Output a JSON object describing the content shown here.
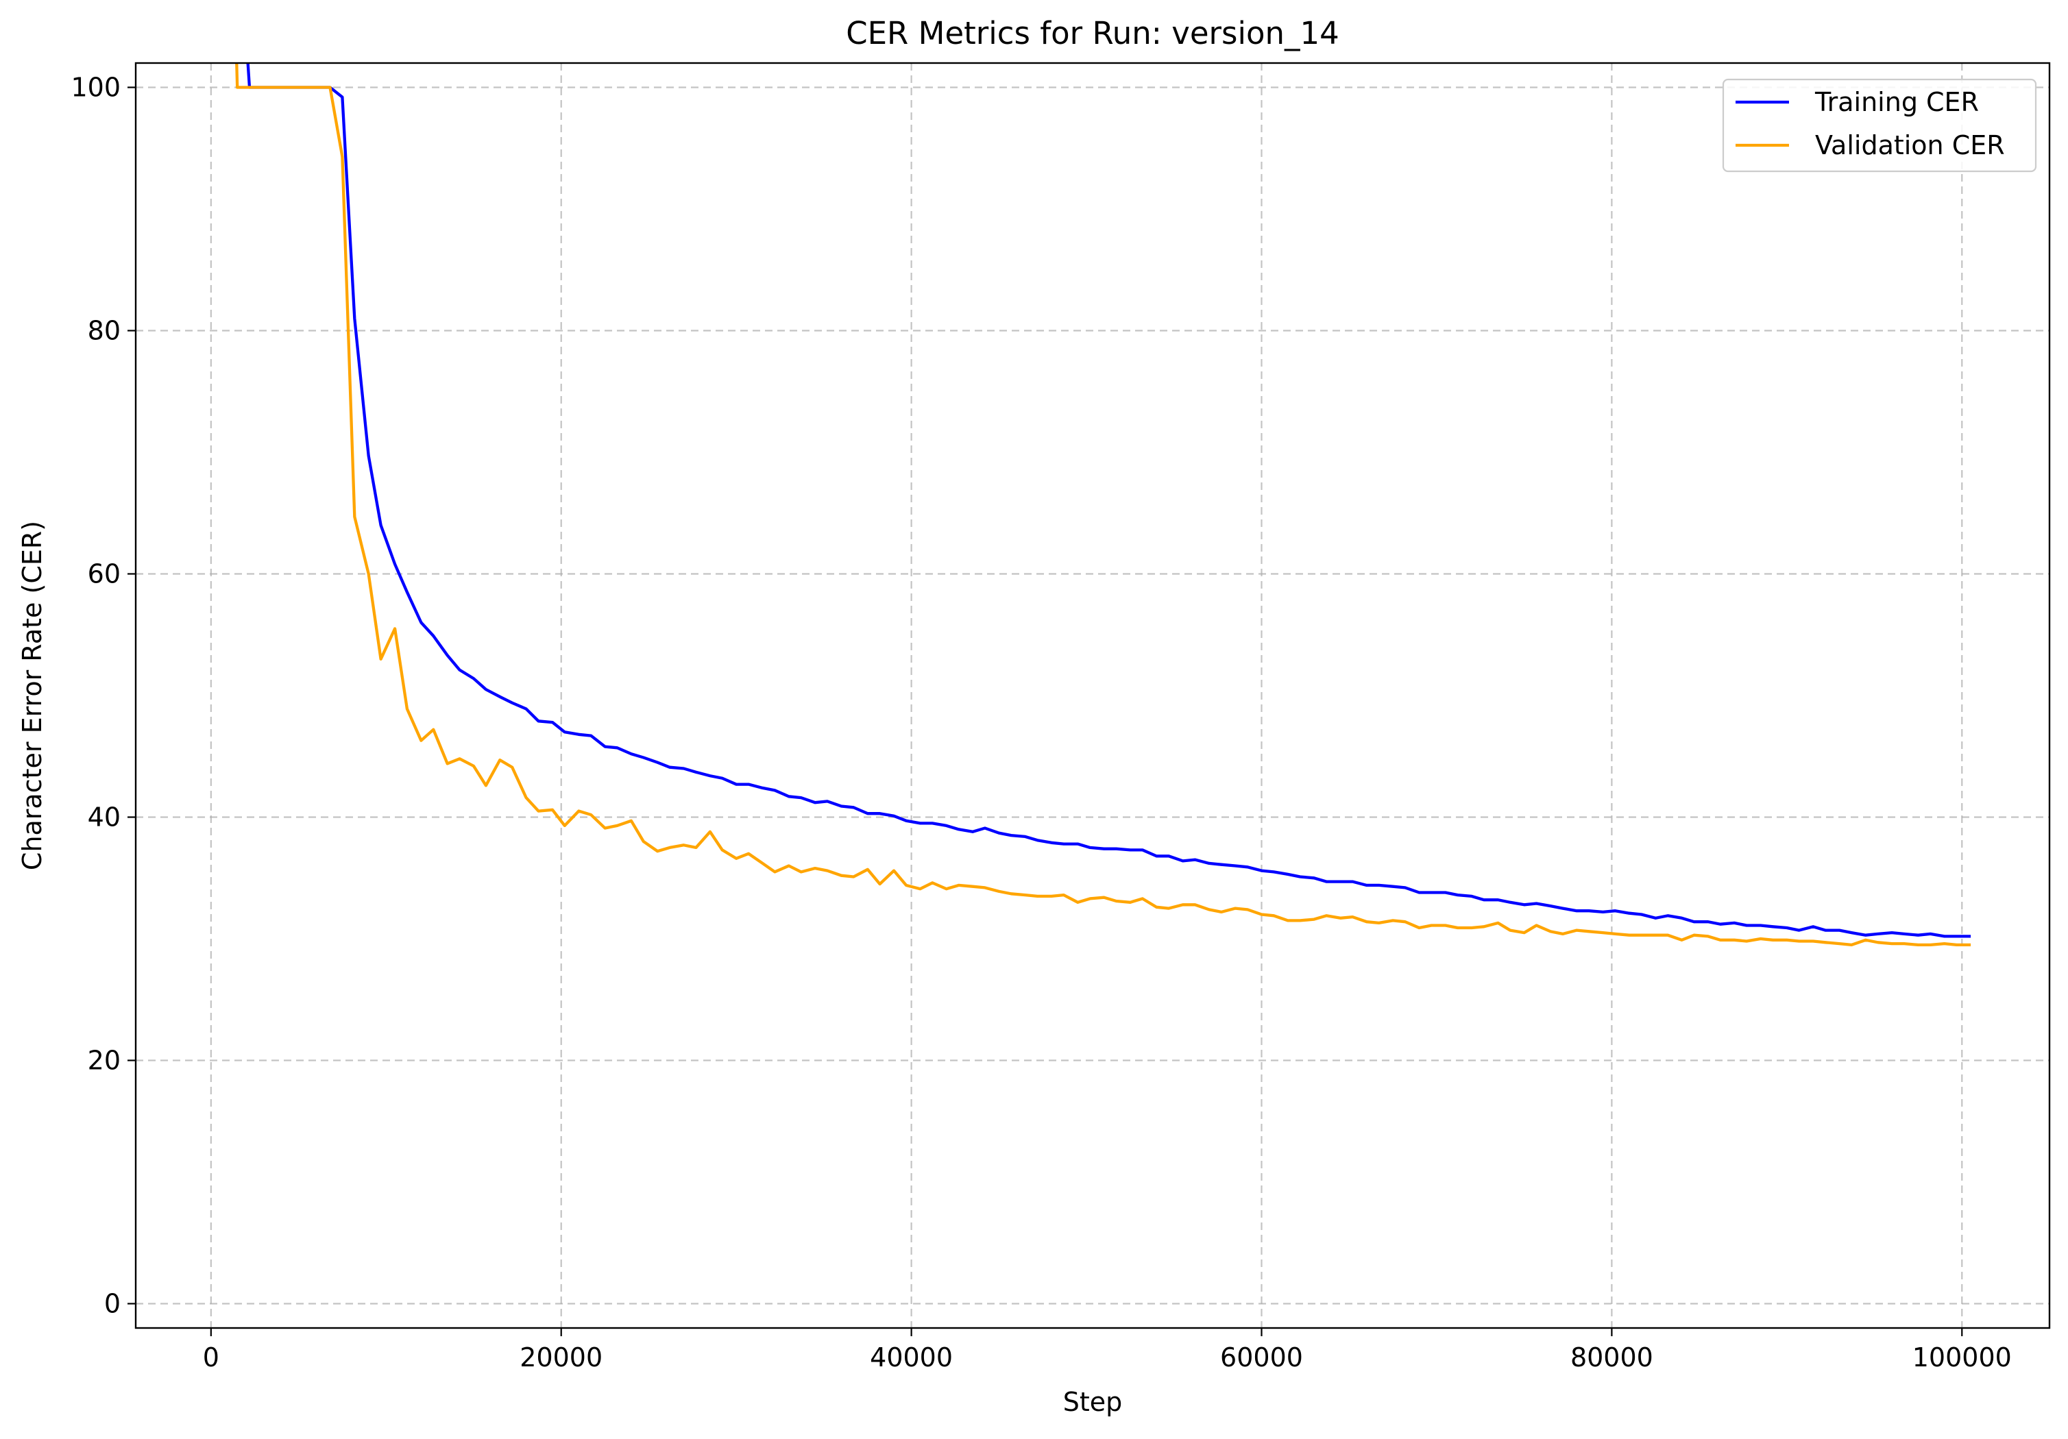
{
  "chart_data": {
    "type": "line",
    "title": "CER Metrics for Run: version_14",
    "xlabel": "Step",
    "ylabel": "Character Error Rate (CER)",
    "xlim": [
      -4300,
      105000
    ],
    "ylim": [
      -2,
      102
    ],
    "xticks": [
      0,
      20000,
      40000,
      60000,
      80000,
      100000
    ],
    "xtick_labels": [
      "0",
      "20000",
      "40000",
      "60000",
      "80000",
      "100000"
    ],
    "yticks": [
      0,
      20,
      40,
      60,
      80,
      100
    ],
    "ytick_labels": [
      "0",
      "20",
      "40",
      "60",
      "80",
      "100"
    ],
    "grid": true,
    "legend": "top-right",
    "series": [
      {
        "name": "Training CER",
        "color": "#0000ff",
        "points": [
          [
            1500,
            115
          ],
          [
            2200,
            100
          ],
          [
            3000,
            100
          ],
          [
            4000,
            100
          ],
          [
            5000,
            100
          ],
          [
            6000,
            100
          ],
          [
            6800,
            100
          ],
          [
            7500,
            99.2
          ],
          [
            8200,
            81
          ],
          [
            9000,
            69.7
          ],
          [
            9700,
            64
          ],
          [
            10500,
            60.8
          ],
          [
            11200,
            58.5
          ],
          [
            12000,
            56
          ],
          [
            12700,
            54.9
          ],
          [
            13500,
            53.3
          ],
          [
            14200,
            52.1
          ],
          [
            15000,
            51.4
          ],
          [
            15700,
            50.5
          ],
          [
            16500,
            49.9
          ],
          [
            17200,
            49.4
          ],
          [
            18000,
            48.9
          ],
          [
            18700,
            47.9
          ],
          [
            19500,
            47.8
          ],
          [
            20200,
            47
          ],
          [
            21000,
            46.8
          ],
          [
            21700,
            46.7
          ],
          [
            22500,
            45.8
          ],
          [
            23200,
            45.7
          ],
          [
            24000,
            45.2
          ],
          [
            24700,
            44.9
          ],
          [
            25500,
            44.5
          ],
          [
            26200,
            44.1
          ],
          [
            27000,
            44
          ],
          [
            27700,
            43.7
          ],
          [
            28500,
            43.4
          ],
          [
            29200,
            43.2
          ],
          [
            30000,
            42.7
          ],
          [
            30700,
            42.7
          ],
          [
            31500,
            42.4
          ],
          [
            32200,
            42.2
          ],
          [
            33000,
            41.7
          ],
          [
            33700,
            41.6
          ],
          [
            34500,
            41.2
          ],
          [
            35200,
            41.3
          ],
          [
            36000,
            40.9
          ],
          [
            36700,
            40.8
          ],
          [
            37500,
            40.3
          ],
          [
            38200,
            40.3
          ],
          [
            39000,
            40.1
          ],
          [
            39700,
            39.7
          ],
          [
            40500,
            39.5
          ],
          [
            41200,
            39.5
          ],
          [
            42000,
            39.3
          ],
          [
            42700,
            39
          ],
          [
            43500,
            38.8
          ],
          [
            44200,
            39.1
          ],
          [
            45000,
            38.7
          ],
          [
            45700,
            38.5
          ],
          [
            46500,
            38.4
          ],
          [
            47200,
            38.1
          ],
          [
            48000,
            37.9
          ],
          [
            48700,
            37.8
          ],
          [
            49500,
            37.8
          ],
          [
            50200,
            37.5
          ],
          [
            51000,
            37.4
          ],
          [
            51700,
            37.4
          ],
          [
            52500,
            37.3
          ],
          [
            53200,
            37.3
          ],
          [
            54000,
            36.8
          ],
          [
            54700,
            36.8
          ],
          [
            55500,
            36.4
          ],
          [
            56200,
            36.5
          ],
          [
            57000,
            36.2
          ],
          [
            57700,
            36.1
          ],
          [
            58500,
            36
          ],
          [
            59200,
            35.9
          ],
          [
            60000,
            35.6
          ],
          [
            60700,
            35.5
          ],
          [
            61500,
            35.3
          ],
          [
            62200,
            35.1
          ],
          [
            63000,
            35
          ],
          [
            63700,
            34.7
          ],
          [
            64500,
            34.7
          ],
          [
            65200,
            34.7
          ],
          [
            66000,
            34.4
          ],
          [
            66700,
            34.4
          ],
          [
            67500,
            34.3
          ],
          [
            68200,
            34.2
          ],
          [
            69000,
            33.8
          ],
          [
            69700,
            33.8
          ],
          [
            70500,
            33.8
          ],
          [
            71200,
            33.6
          ],
          [
            72000,
            33.5
          ],
          [
            72700,
            33.2
          ],
          [
            73500,
            33.2
          ],
          [
            74200,
            33
          ],
          [
            75000,
            32.8
          ],
          [
            75700,
            32.9
          ],
          [
            76500,
            32.7
          ],
          [
            77200,
            32.5
          ],
          [
            78000,
            32.3
          ],
          [
            78700,
            32.3
          ],
          [
            79500,
            32.2
          ],
          [
            80200,
            32.3
          ],
          [
            81000,
            32.1
          ],
          [
            81700,
            32
          ],
          [
            82500,
            31.7
          ],
          [
            83200,
            31.9
          ],
          [
            84000,
            31.7
          ],
          [
            84700,
            31.4
          ],
          [
            85500,
            31.4
          ],
          [
            86200,
            31.2
          ],
          [
            87000,
            31.3
          ],
          [
            87700,
            31.1
          ],
          [
            88500,
            31.1
          ],
          [
            89200,
            31
          ],
          [
            90000,
            30.9
          ],
          [
            90700,
            30.7
          ],
          [
            91500,
            31
          ],
          [
            92200,
            30.7
          ],
          [
            93000,
            30.7
          ],
          [
            93700,
            30.5
          ],
          [
            94500,
            30.3
          ],
          [
            95200,
            30.4
          ],
          [
            96000,
            30.5
          ],
          [
            96700,
            30.4
          ],
          [
            97500,
            30.3
          ],
          [
            98200,
            30.4
          ],
          [
            99000,
            30.2
          ],
          [
            99700,
            30.2
          ],
          [
            100500,
            30.2
          ]
        ]
      },
      {
        "name": "Validation CER",
        "color": "#ffa500",
        "points": [
          [
            1300,
            111
          ],
          [
            1500,
            100
          ],
          [
            3000,
            100
          ],
          [
            4000,
            100
          ],
          [
            5000,
            100
          ],
          [
            6000,
            100
          ],
          [
            6800,
            100
          ],
          [
            7500,
            94.3
          ],
          [
            8200,
            64.7
          ],
          [
            9000,
            60
          ],
          [
            9700,
            53
          ],
          [
            10500,
            55.5
          ],
          [
            11200,
            48.9
          ],
          [
            12000,
            46.3
          ],
          [
            12700,
            47.2
          ],
          [
            13500,
            44.4
          ],
          [
            14200,
            44.8
          ],
          [
            15000,
            44.2
          ],
          [
            15700,
            42.6
          ],
          [
            16500,
            44.7
          ],
          [
            17200,
            44.1
          ],
          [
            18000,
            41.6
          ],
          [
            18700,
            40.5
          ],
          [
            19500,
            40.6
          ],
          [
            20200,
            39.3
          ],
          [
            21000,
            40.5
          ],
          [
            21700,
            40.2
          ],
          [
            22500,
            39.1
          ],
          [
            23200,
            39.3
          ],
          [
            24000,
            39.7
          ],
          [
            24700,
            38
          ],
          [
            25500,
            37.2
          ],
          [
            26200,
            37.5
          ],
          [
            27000,
            37.7
          ],
          [
            27700,
            37.5
          ],
          [
            28500,
            38.8
          ],
          [
            29200,
            37.3
          ],
          [
            30000,
            36.6
          ],
          [
            30700,
            37
          ],
          [
            31500,
            36.2
          ],
          [
            32200,
            35.5
          ],
          [
            33000,
            36
          ],
          [
            33700,
            35.5
          ],
          [
            34500,
            35.8
          ],
          [
            35200,
            35.6
          ],
          [
            36000,
            35.2
          ],
          [
            36700,
            35.1
          ],
          [
            37500,
            35.7
          ],
          [
            38200,
            34.5
          ],
          [
            39000,
            35.6
          ],
          [
            39700,
            34.4
          ],
          [
            40500,
            34.1
          ],
          [
            41200,
            34.6
          ],
          [
            42000,
            34.1
          ],
          [
            42700,
            34.4
          ],
          [
            43500,
            34.3
          ],
          [
            44200,
            34.2
          ],
          [
            45000,
            33.9
          ],
          [
            45700,
            33.7
          ],
          [
            46500,
            33.6
          ],
          [
            47200,
            33.5
          ],
          [
            48000,
            33.5
          ],
          [
            48700,
            33.6
          ],
          [
            49500,
            33
          ],
          [
            50200,
            33.3
          ],
          [
            51000,
            33.4
          ],
          [
            51700,
            33.1
          ],
          [
            52500,
            33
          ],
          [
            53200,
            33.3
          ],
          [
            54000,
            32.6
          ],
          [
            54700,
            32.5
          ],
          [
            55500,
            32.8
          ],
          [
            56200,
            32.8
          ],
          [
            57000,
            32.4
          ],
          [
            57700,
            32.2
          ],
          [
            58500,
            32.5
          ],
          [
            59200,
            32.4
          ],
          [
            60000,
            32
          ],
          [
            60700,
            31.9
          ],
          [
            61500,
            31.5
          ],
          [
            62200,
            31.5
          ],
          [
            63000,
            31.6
          ],
          [
            63700,
            31.9
          ],
          [
            64500,
            31.7
          ],
          [
            65200,
            31.8
          ],
          [
            66000,
            31.4
          ],
          [
            66700,
            31.3
          ],
          [
            67500,
            31.5
          ],
          [
            68200,
            31.4
          ],
          [
            69000,
            30.9
          ],
          [
            69700,
            31.1
          ],
          [
            70500,
            31.1
          ],
          [
            71200,
            30.9
          ],
          [
            72000,
            30.9
          ],
          [
            72700,
            31
          ],
          [
            73500,
            31.3
          ],
          [
            74200,
            30.7
          ],
          [
            75000,
            30.5
          ],
          [
            75700,
            31.1
          ],
          [
            76500,
            30.6
          ],
          [
            77200,
            30.4
          ],
          [
            78000,
            30.7
          ],
          [
            78700,
            30.6
          ],
          [
            79500,
            30.5
          ],
          [
            80200,
            30.4
          ],
          [
            81000,
            30.3
          ],
          [
            81700,
            30.3
          ],
          [
            82500,
            30.3
          ],
          [
            83200,
            30.3
          ],
          [
            84000,
            29.9
          ],
          [
            84700,
            30.3
          ],
          [
            85500,
            30.2
          ],
          [
            86200,
            29.9
          ],
          [
            87000,
            29.9
          ],
          [
            87700,
            29.8
          ],
          [
            88500,
            30
          ],
          [
            89200,
            29.9
          ],
          [
            90000,
            29.9
          ],
          [
            90700,
            29.8
          ],
          [
            91500,
            29.8
          ],
          [
            92200,
            29.7
          ],
          [
            93000,
            29.6
          ],
          [
            93700,
            29.5
          ],
          [
            94500,
            29.9
          ],
          [
            95200,
            29.7
          ],
          [
            96000,
            29.6
          ],
          [
            96700,
            29.6
          ],
          [
            97500,
            29.5
          ],
          [
            98200,
            29.5
          ],
          [
            99000,
            29.6
          ],
          [
            99700,
            29.5
          ],
          [
            100500,
            29.5
          ]
        ]
      }
    ]
  }
}
